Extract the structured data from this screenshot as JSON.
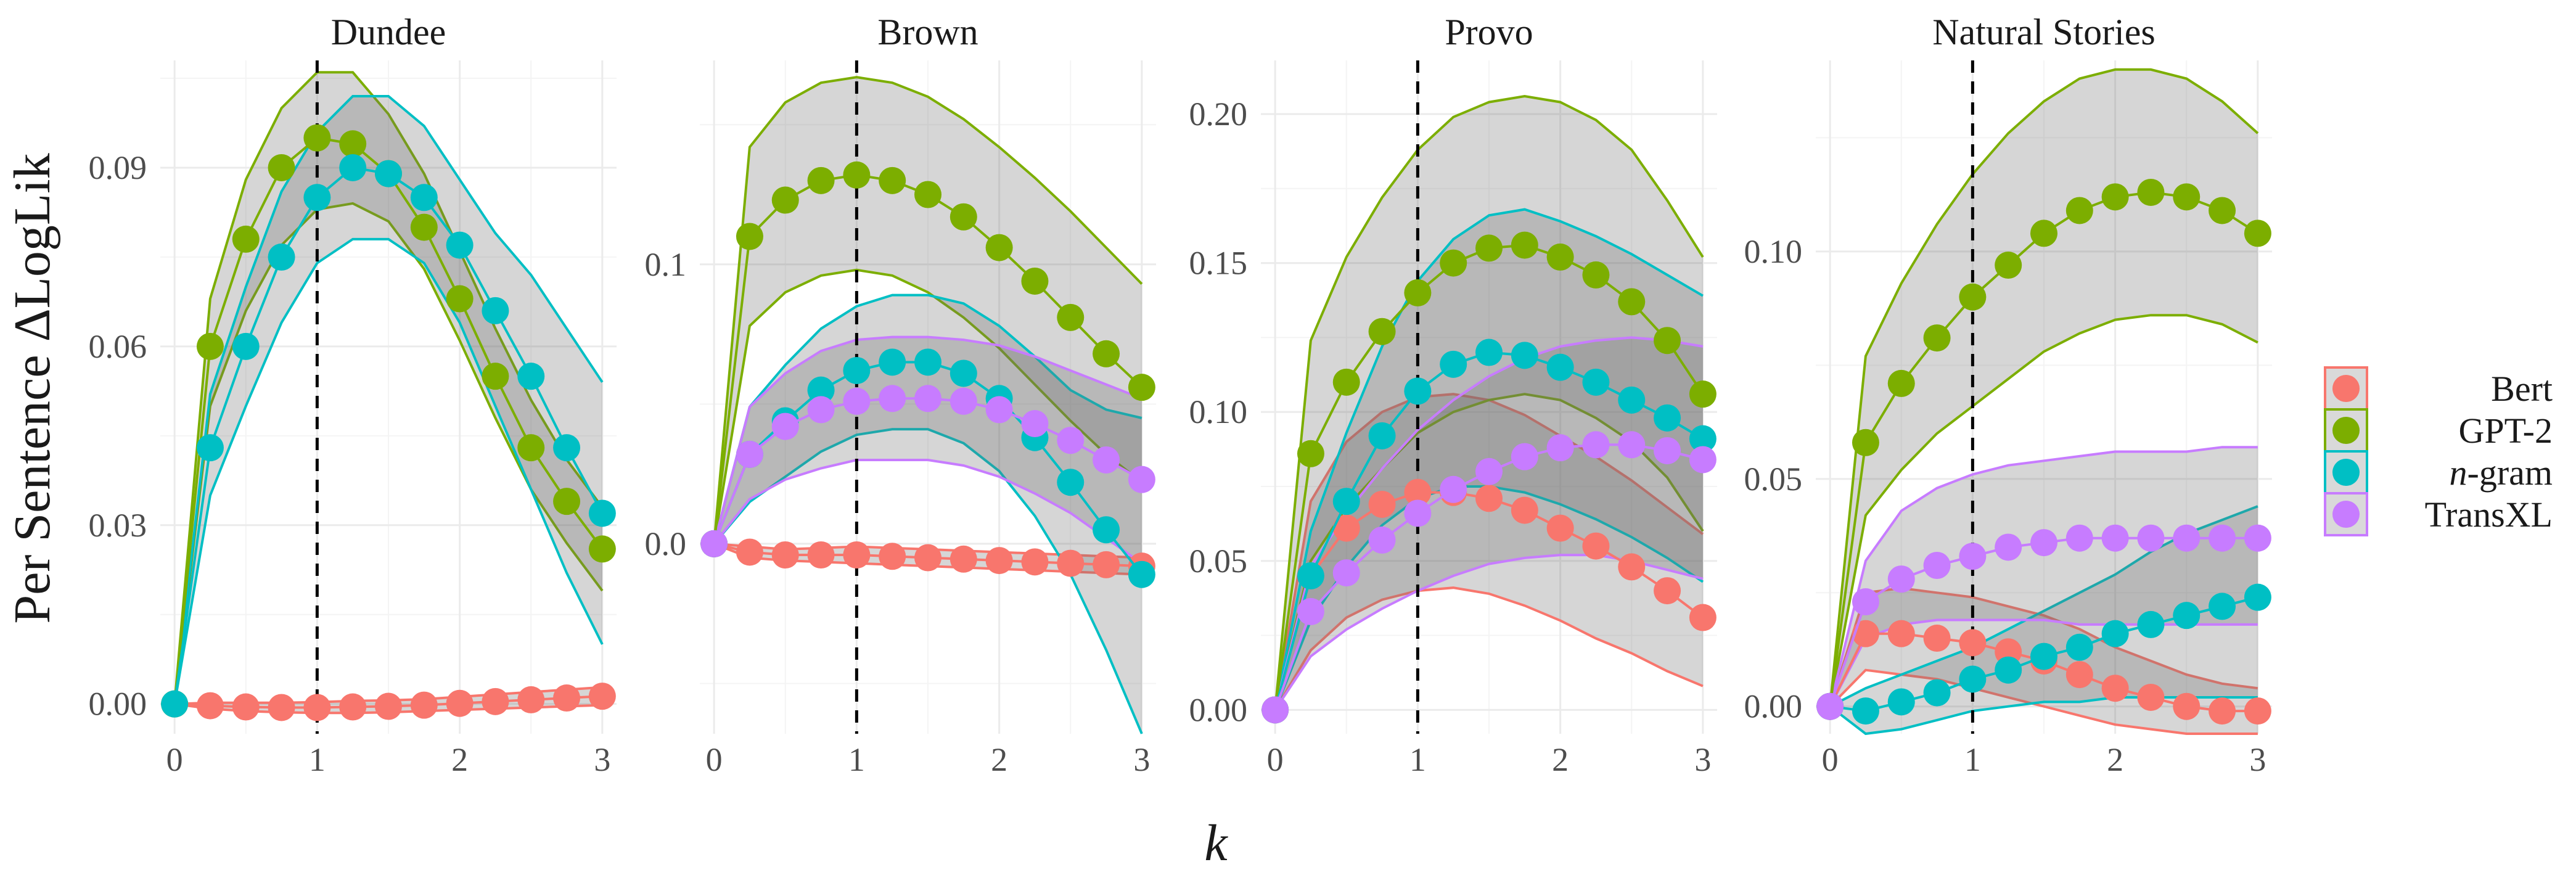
{
  "chart_data": {
    "type": "line",
    "xlabel": "k",
    "ylabel": "Per Sentence ΔLogLik",
    "reference_line_x": 1,
    "legend_entries": [
      {
        "name": "Bert",
        "color": "#F8766D"
      },
      {
        "name": "GPT-2",
        "color": "#7CAE00"
      },
      {
        "name": "n-gram",
        "color": "#00BFC4"
      },
      {
        "name": "TransXL",
        "color": "#C77CFF"
      }
    ],
    "x": [
      0,
      0.25,
      0.5,
      0.75,
      1,
      1.25,
      1.5,
      1.75,
      2,
      2.25,
      2.5,
      2.75,
      3
    ],
    "panels": [
      {
        "title": "Dundee",
        "xlim": [
          -0.1,
          3.1
        ],
        "ylim": [
          -0.005,
          0.108
        ],
        "yticks": [
          0.0,
          0.03,
          0.06,
          0.09
        ],
        "ytick_labels": [
          "0.00",
          "0.03",
          "0.06",
          "0.09"
        ],
        "xticks": [
          0,
          1,
          2,
          3
        ],
        "xtick_labels": [
          "0",
          "1",
          "2",
          "3"
        ],
        "series": [
          {
            "name": "Bert",
            "values": [
              0,
              -0.0003,
              -0.0005,
              -0.0006,
              -0.0006,
              -0.0005,
              -0.0004,
              -0.0002,
              0.0001,
              0.0004,
              0.0007,
              0.001,
              0.0013
            ],
            "lower": [
              0,
              -0.0008,
              -0.0012,
              -0.0014,
              -0.0015,
              -0.0015,
              -0.0014,
              -0.0012,
              -0.001,
              -0.0008,
              -0.0006,
              -0.0004,
              -0.0002
            ],
            "upper": [
              0,
              0.0002,
              0.0002,
              0.0002,
              0.0003,
              0.0005,
              0.0006,
              0.0008,
              0.0012,
              0.0016,
              0.002,
              0.0024,
              0.0028
            ]
          },
          {
            "name": "GPT-2",
            "values": [
              0,
              0.06,
              0.078,
              0.09,
              0.095,
              0.094,
              0.089,
              0.08,
              0.068,
              0.055,
              0.043,
              0.034,
              0.026
            ],
            "lower": [
              0,
              0.05,
              0.066,
              0.077,
              0.083,
              0.084,
              0.081,
              0.073,
              0.061,
              0.048,
              0.036,
              0.027,
              0.019
            ],
            "upper": [
              0,
              0.068,
              0.088,
              0.1,
              0.106,
              0.106,
              0.099,
              0.089,
              0.076,
              0.063,
              0.051,
              0.041,
              0.033
            ]
          },
          {
            "name": "n-gram",
            "values": [
              0,
              0.043,
              0.06,
              0.075,
              0.085,
              0.09,
              0.089,
              0.085,
              0.077,
              0.066,
              0.055,
              0.043,
              0.032
            ],
            "lower": [
              0,
              0.035,
              0.05,
              0.064,
              0.074,
              0.078,
              0.078,
              0.074,
              0.064,
              0.05,
              0.036,
              0.022,
              0.01
            ],
            "upper": [
              0,
              0.052,
              0.07,
              0.086,
              0.096,
              0.102,
              0.102,
              0.097,
              0.088,
              0.079,
              0.072,
              0.063,
              0.054
            ]
          }
        ]
      },
      {
        "title": "Brown",
        "xlim": [
          -0.1,
          3.1
        ],
        "ylim": [
          -0.068,
          0.173
        ],
        "yticks": [
          0.0,
          0.1
        ],
        "ytick_labels": [
          "0.0",
          "0.1"
        ],
        "xticks": [
          0,
          1,
          2,
          3
        ],
        "xtick_labels": [
          "0",
          "1",
          "2",
          "3"
        ],
        "series": [
          {
            "name": "Bert",
            "values": [
              0,
              -0.003,
              -0.004,
              -0.004,
              -0.004,
              -0.0045,
              -0.005,
              -0.0055,
              -0.006,
              -0.0065,
              -0.007,
              -0.0075,
              -0.008
            ],
            "lower": [
              0,
              -0.005,
              -0.006,
              -0.0065,
              -0.007,
              -0.0075,
              -0.008,
              -0.0085,
              -0.009,
              -0.0095,
              -0.01,
              -0.0105,
              -0.011
            ],
            "upper": [
              0,
              -0.001,
              -0.002,
              -0.0015,
              -0.001,
              -0.0015,
              -0.002,
              -0.0025,
              -0.003,
              -0.0035,
              -0.004,
              -0.0045,
              -0.005
            ]
          },
          {
            "name": "GPT-2",
            "values": [
              0,
              0.11,
              0.123,
              0.13,
              0.132,
              0.13,
              0.125,
              0.117,
              0.106,
              0.094,
              0.081,
              0.068,
              0.056
            ],
            "lower": [
              0,
              0.078,
              0.09,
              0.096,
              0.098,
              0.096,
              0.09,
              0.081,
              0.07,
              0.057,
              0.044,
              0.032,
              0.022
            ],
            "upper": [
              0,
              0.142,
              0.158,
              0.165,
              0.167,
              0.165,
              0.16,
              0.152,
              0.142,
              0.131,
              0.119,
              0.106,
              0.093
            ]
          },
          {
            "name": "n-gram",
            "values": [
              0,
              0.032,
              0.044,
              0.055,
              0.062,
              0.065,
              0.065,
              0.061,
              0.052,
              0.038,
              0.022,
              0.005,
              -0.011
            ],
            "lower": [
              0,
              0.015,
              0.024,
              0.033,
              0.039,
              0.041,
              0.041,
              0.036,
              0.026,
              0.01,
              -0.011,
              -0.038,
              -0.068
            ],
            "upper": [
              0,
              0.049,
              0.064,
              0.077,
              0.085,
              0.089,
              0.089,
              0.086,
              0.078,
              0.067,
              0.055,
              0.048,
              0.045
            ]
          },
          {
            "name": "TransXL",
            "values": [
              0,
              0.032,
              0.042,
              0.048,
              0.051,
              0.052,
              0.052,
              0.051,
              0.048,
              0.043,
              0.037,
              0.03,
              0.023
            ],
            "lower": [
              0,
              0.016,
              0.023,
              0.027,
              0.03,
              0.03,
              0.03,
              0.028,
              0.024,
              0.018,
              0.011,
              0.002,
              -0.007
            ],
            "upper": [
              0,
              0.049,
              0.061,
              0.069,
              0.073,
              0.074,
              0.074,
              0.073,
              0.071,
              0.067,
              0.062,
              0.057,
              0.052
            ]
          }
        ]
      },
      {
        "title": "Provo",
        "xlim": [
          -0.1,
          3.1
        ],
        "ylim": [
          -0.008,
          0.218
        ],
        "yticks": [
          0.0,
          0.05,
          0.1,
          0.15,
          0.2
        ],
        "ytick_labels": [
          "0.00",
          "0.05",
          "0.10",
          "0.15",
          "0.20"
        ],
        "xticks": [
          0,
          1,
          2,
          3
        ],
        "xtick_labels": [
          "0",
          "1",
          "2",
          "3"
        ],
        "series": [
          {
            "name": "Bert",
            "values": [
              0,
              0.045,
              0.061,
              0.069,
              0.073,
              0.073,
              0.071,
              0.067,
              0.061,
              0.055,
              0.048,
              0.04,
              0.031
            ],
            "lower": [
              0,
              0.02,
              0.031,
              0.037,
              0.04,
              0.041,
              0.039,
              0.035,
              0.03,
              0.024,
              0.019,
              0.013,
              0.008
            ],
            "upper": [
              0,
              0.07,
              0.09,
              0.1,
              0.105,
              0.106,
              0.104,
              0.099,
              0.092,
              0.085,
              0.077,
              0.068,
              0.059
            ]
          },
          {
            "name": "GPT-2",
            "values": [
              0,
              0.086,
              0.11,
              0.127,
              0.14,
              0.15,
              0.155,
              0.156,
              0.152,
              0.146,
              0.137,
              0.124,
              0.106
            ],
            "lower": [
              0,
              0.05,
              0.068,
              0.081,
              0.093,
              0.1,
              0.104,
              0.106,
              0.104,
              0.098,
              0.09,
              0.078,
              0.06
            ],
            "upper": [
              0,
              0.124,
              0.152,
              0.172,
              0.188,
              0.199,
              0.204,
              0.206,
              0.204,
              0.198,
              0.188,
              0.171,
              0.152
            ]
          },
          {
            "name": "n-gram",
            "values": [
              0,
              0.045,
              0.07,
              0.092,
              0.107,
              0.116,
              0.12,
              0.119,
              0.115,
              0.11,
              0.104,
              0.098,
              0.091
            ],
            "lower": [
              0,
              0.03,
              0.048,
              0.062,
              0.071,
              0.075,
              0.075,
              0.073,
              0.069,
              0.064,
              0.058,
              0.051,
              0.043
            ],
            "upper": [
              0,
              0.06,
              0.093,
              0.122,
              0.144,
              0.158,
              0.166,
              0.168,
              0.164,
              0.159,
              0.153,
              0.146,
              0.139
            ]
          },
          {
            "name": "TransXL",
            "values": [
              0,
              0.033,
              0.046,
              0.057,
              0.066,
              0.074,
              0.08,
              0.085,
              0.088,
              0.089,
              0.089,
              0.087,
              0.084
            ],
            "lower": [
              0,
              0.018,
              0.027,
              0.034,
              0.04,
              0.045,
              0.049,
              0.051,
              0.052,
              0.052,
              0.05,
              0.047,
              0.044
            ],
            "upper": [
              0,
              0.048,
              0.066,
              0.081,
              0.094,
              0.104,
              0.112,
              0.118,
              0.122,
              0.124,
              0.125,
              0.124,
              0.122
            ]
          }
        ]
      },
      {
        "title": "Natural Stories",
        "xlim": [
          -0.1,
          3.1
        ],
        "ylim": [
          -0.006,
          0.142
        ],
        "yticks": [
          0.0,
          0.05,
          0.1
        ],
        "ytick_labels": [
          "0.00",
          "0.05",
          "0.10"
        ],
        "xticks": [
          0,
          1,
          2,
          3
        ],
        "xtick_labels": [
          "0",
          "1",
          "2",
          "3"
        ],
        "series": [
          {
            "name": "Bert",
            "values": [
              0,
              0.016,
              0.016,
              0.015,
              0.014,
              0.012,
              0.01,
              0.007,
              0.004,
              0.002,
              0.0,
              -0.001,
              -0.001
            ],
            "lower": [
              0,
              0.008,
              0.007,
              0.006,
              0.004,
              0.002,
              0.0,
              -0.002,
              -0.004,
              -0.005,
              -0.006,
              -0.006,
              -0.006
            ],
            "upper": [
              0,
              0.025,
              0.026,
              0.025,
              0.024,
              0.022,
              0.02,
              0.017,
              0.013,
              0.01,
              0.007,
              0.005,
              0.004
            ]
          },
          {
            "name": "GPT-2",
            "values": [
              0,
              0.058,
              0.071,
              0.081,
              0.09,
              0.097,
              0.104,
              0.109,
              0.112,
              0.113,
              0.112,
              0.109,
              0.104
            ],
            "lower": [
              0,
              0.042,
              0.052,
              0.06,
              0.066,
              0.072,
              0.078,
              0.082,
              0.085,
              0.086,
              0.086,
              0.084,
              0.08
            ],
            "upper": [
              0,
              0.077,
              0.093,
              0.106,
              0.117,
              0.126,
              0.133,
              0.138,
              0.14,
              0.14,
              0.138,
              0.133,
              0.126
            ]
          },
          {
            "name": "n-gram",
            "values": [
              0,
              -0.001,
              0.001,
              0.003,
              0.006,
              0.008,
              0.011,
              0.013,
              0.016,
              0.018,
              0.02,
              0.022,
              0.024
            ],
            "lower": [
              0,
              -0.006,
              -0.005,
              -0.003,
              -0.001,
              0.0,
              0.001,
              0.001,
              0.002,
              0.002,
              0.002,
              0.002,
              0.002
            ],
            "upper": [
              0,
              0.004,
              0.007,
              0.01,
              0.013,
              0.017,
              0.021,
              0.025,
              0.029,
              0.034,
              0.038,
              0.041,
              0.044
            ]
          },
          {
            "name": "TransXL",
            "values": [
              0,
              0.023,
              0.028,
              0.031,
              0.033,
              0.035,
              0.036,
              0.037,
              0.037,
              0.037,
              0.037,
              0.037,
              0.037
            ],
            "lower": [
              0,
              0.015,
              0.018,
              0.019,
              0.019,
              0.019,
              0.019,
              0.018,
              0.018,
              0.018,
              0.018,
              0.018,
              0.018
            ],
            "upper": [
              0,
              0.032,
              0.043,
              0.048,
              0.051,
              0.053,
              0.054,
              0.055,
              0.056,
              0.056,
              0.056,
              0.057,
              0.057
            ]
          }
        ]
      }
    ]
  }
}
